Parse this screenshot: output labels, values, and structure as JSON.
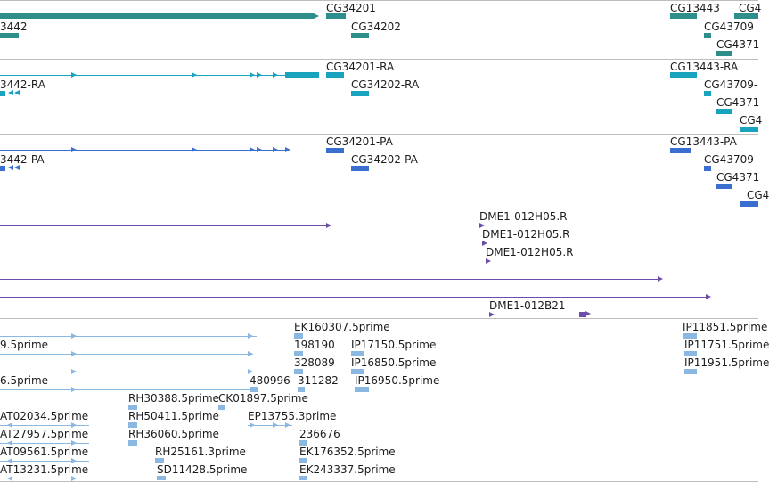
{
  "colors": {
    "gene": "#2e8f8a",
    "transcript": "#1aa3bf",
    "protein": "#3a6fcf",
    "clone": "#6a4fa8",
    "est": "#8ab8e0",
    "separator": "#bdbdbd",
    "text": "#1c1c1c"
  },
  "lanes": {
    "gene": {
      "labels": [
        "CG34201",
        "3442",
        "CG34202",
        "CG13443",
        "CG4",
        "CG43709",
        "CG4371"
      ]
    },
    "transcript": {
      "labels": [
        "CG34201-RA",
        "3442-RA",
        "CG34202-RA",
        "CG13443-RA",
        "CG43709-",
        "CG4371",
        "CG4"
      ]
    },
    "protein": {
      "labels": [
        "CG34201-PA",
        "3442-PA",
        "CG34202-PA",
        "CG13443-PA",
        "CG43709-",
        "CG4371",
        "CG4"
      ]
    },
    "clone": {
      "labels": [
        "DME1-012H05.R",
        "DME1-012H05.R",
        "DME1-012H05.R",
        "DME1-012B21"
      ]
    },
    "est": {
      "labels": [
        "EK160307.5prime",
        "9.5prime",
        "198190",
        "IP17150.5prime",
        "IP11851.5prime",
        "IP11751.5prime",
        "328089",
        "IP16850.5prime",
        "IP11951.5prime",
        "6.5prime",
        "480996",
        "311282",
        "IP16950.5prime",
        "RH30388.5prime",
        "CK01897.5prime",
        "AT02034.5prime",
        "RH50411.5prime",
        "EP13755.3prime",
        "AT27957.5prime",
        "RH36060.5prime",
        "236676",
        "AT09561.5prime",
        "RH25161.3prime",
        "EK176352.5prime",
        "AT13231.5prime",
        "SD11428.5prime",
        "EK243337.5prime"
      ]
    }
  }
}
